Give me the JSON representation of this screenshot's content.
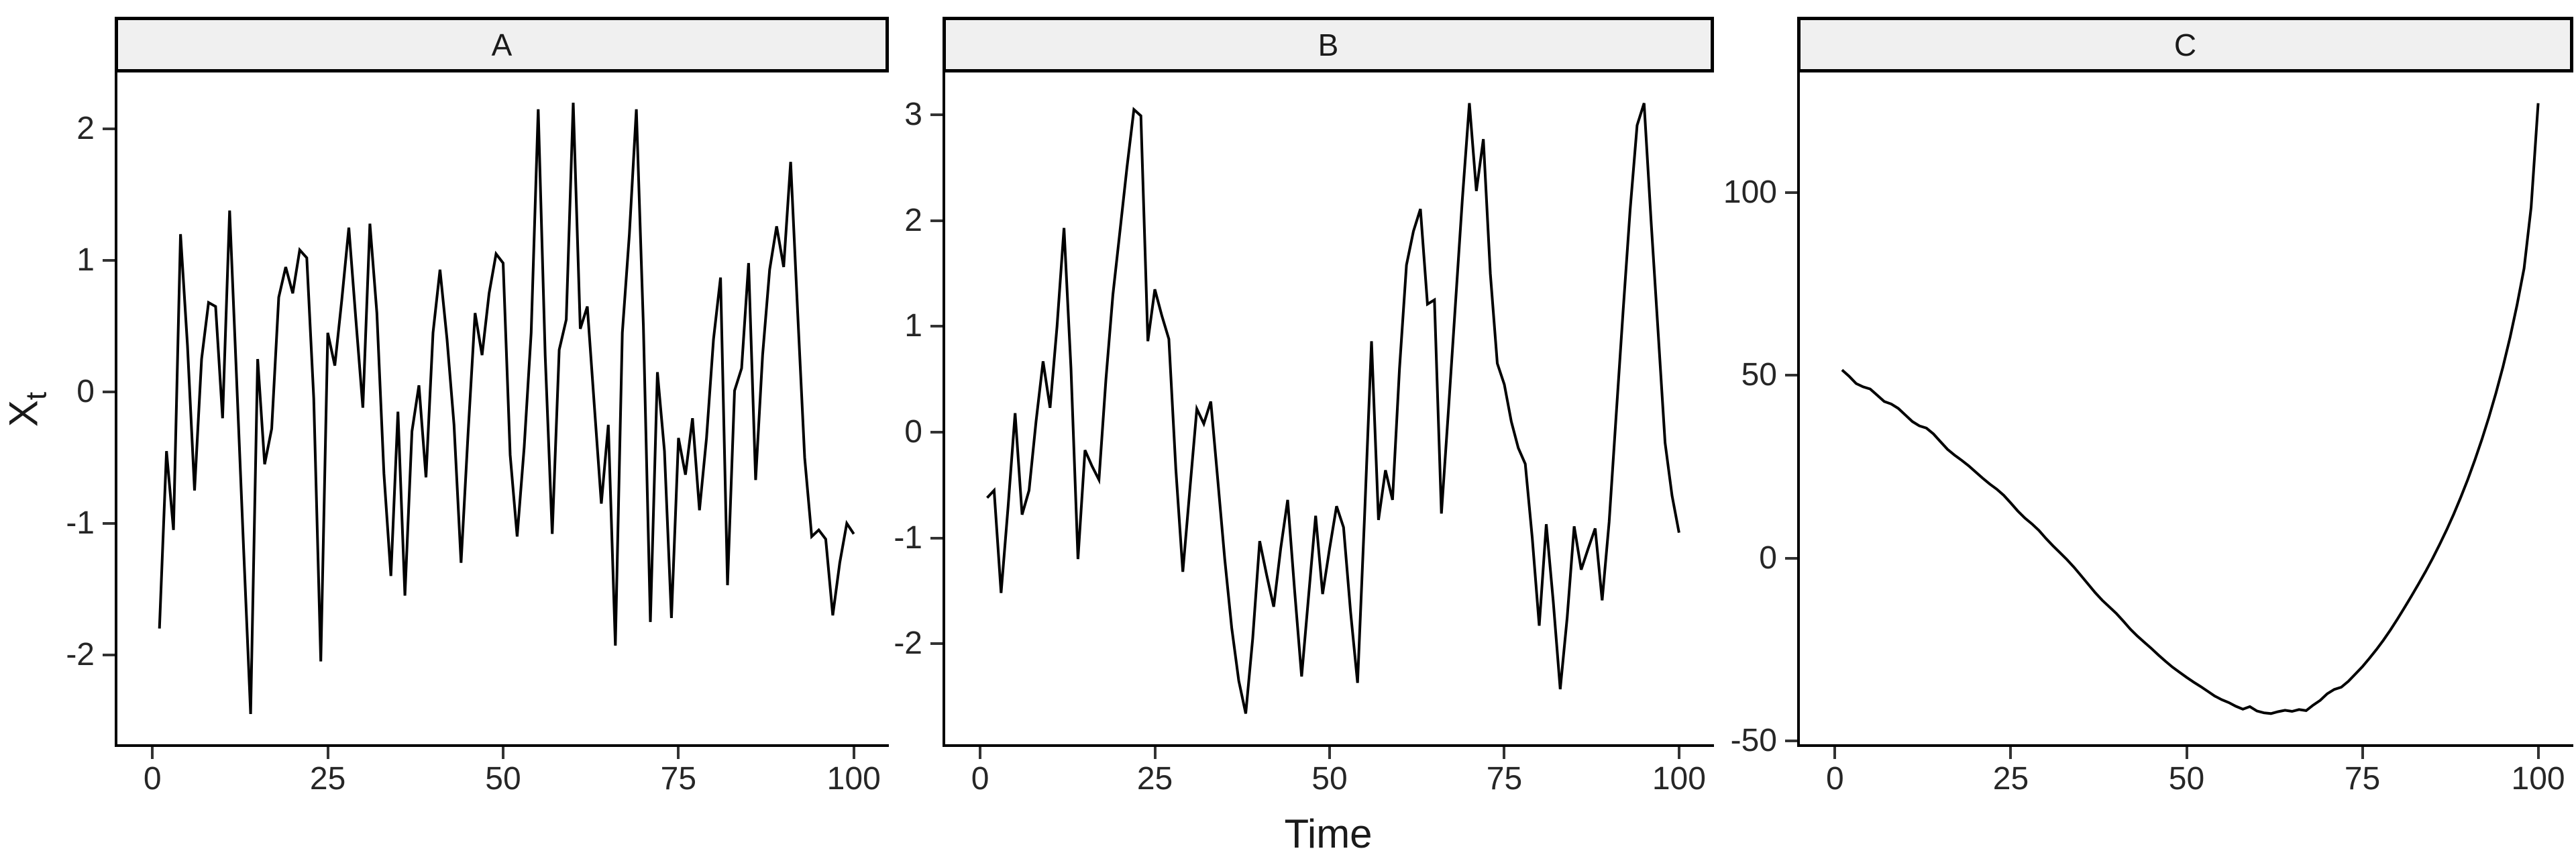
{
  "figure": {
    "background": "#FFFFFF",
    "axis_line_color": "#000000",
    "tick_color": "#333333",
    "tick_label_color": "#262626",
    "series_line_color": "#000000",
    "strip_fill": "#F0F0F0",
    "strip_border_color": "#000000"
  },
  "chart_data": {
    "type": "line",
    "title": "",
    "xlabel": "Time",
    "ylabel_base": "X",
    "ylabel_sub": "t",
    "x_range": [
      1,
      100
    ],
    "x_step": 1,
    "xticks": [
      0,
      25,
      50,
      75,
      100
    ],
    "xlim": [
      -5,
      105
    ],
    "legend": "none",
    "grid": "off",
    "facets": [
      {
        "label": "A",
        "yticks": [
          -2,
          -1,
          0,
          1,
          2
        ],
        "ylim": [
          -2.68,
          2.43
        ],
        "values": [
          -1.8,
          -0.45,
          -1.05,
          1.2,
          0.35,
          -0.75,
          0.25,
          0.68,
          0.65,
          -0.2,
          1.38,
          0.1,
          -1.2,
          -2.45,
          0.25,
          -0.55,
          -0.28,
          0.72,
          0.95,
          0.75,
          1.08,
          1.02,
          -0.05,
          -2.05,
          0.45,
          0.2,
          0.7,
          1.25,
          0.55,
          -0.12,
          1.28,
          0.6,
          -0.62,
          -1.4,
          -0.15,
          -1.55,
          -0.3,
          0.05,
          -0.65,
          0.45,
          0.93,
          0.4,
          -0.25,
          -1.3,
          -0.32,
          0.6,
          0.28,
          0.75,
          1.05,
          0.98,
          -0.48,
          -1.1,
          -0.42,
          0.45,
          2.15,
          0.28,
          -1.08,
          0.32,
          0.55,
          2.2,
          0.48,
          0.65,
          -0.1,
          -0.85,
          -0.25,
          -1.93,
          0.45,
          1.2,
          2.15,
          0.5,
          -1.75,
          0.15,
          -0.45,
          -1.72,
          -0.35,
          -0.63,
          -0.2,
          -0.9,
          -0.35,
          0.4,
          0.87,
          -1.47,
          0.01,
          0.18,
          0.98,
          -0.67,
          0.28,
          0.93,
          1.26,
          0.95,
          1.75,
          0.6,
          -0.5,
          -1.1,
          -1.05,
          -1.12,
          -1.7,
          -1.3,
          -1.0,
          -1.08
        ]
      },
      {
        "label": "B",
        "yticks": [
          -2,
          -1,
          0,
          1,
          2,
          3
        ],
        "ylim": [
          -2.95,
          3.4
        ],
        "values": [
          -0.62,
          -0.55,
          -1.52,
          -0.7,
          0.18,
          -0.78,
          -0.55,
          0.1,
          0.67,
          0.23,
          1.0,
          1.93,
          0.6,
          -1.2,
          -0.17,
          -0.32,
          -0.45,
          0.5,
          1.3,
          1.9,
          2.5,
          3.05,
          2.99,
          0.86,
          1.35,
          1.1,
          0.88,
          -0.35,
          -1.32,
          -0.55,
          0.22,
          0.08,
          0.29,
          -0.45,
          -1.2,
          -1.85,
          -2.35,
          -2.66,
          -1.95,
          -1.03,
          -1.35,
          -1.65,
          -1.1,
          -0.64,
          -1.5,
          -2.31,
          -1.55,
          -0.79,
          -1.53,
          -1.1,
          -0.7,
          -0.9,
          -1.7,
          -2.37,
          -0.8,
          0.86,
          -0.83,
          -0.36,
          -0.64,
          0.6,
          1.58,
          1.9,
          2.11,
          1.21,
          1.25,
          -0.77,
          0.2,
          1.2,
          2.2,
          3.11,
          2.28,
          2.77,
          1.5,
          0.65,
          0.45,
          0.1,
          -0.15,
          -0.3,
          -1.0,
          -1.83,
          -0.87,
          -1.6,
          -2.43,
          -1.75,
          -0.89,
          -1.3,
          -1.1,
          -0.91,
          -1.59,
          -0.85,
          0.15,
          1.15,
          2.1,
          2.9,
          3.11,
          2.0,
          0.95,
          -0.1,
          -0.6,
          -0.95
        ]
      },
      {
        "label": "C",
        "yticks": [
          -50,
          0,
          50,
          100
        ],
        "ylim": [
          -50.9,
          132.9
        ],
        "values": [
          51.5,
          49.8,
          47.8,
          46.9,
          46.3,
          44.6,
          42.9,
          42.2,
          41.0,
          39.2,
          37.4,
          36.2,
          35.6,
          34.0,
          31.9,
          29.8,
          28.2,
          26.8,
          25.3,
          23.6,
          21.9,
          20.3,
          18.9,
          17.2,
          15.1,
          12.9,
          11.0,
          9.4,
          7.6,
          5.4,
          3.4,
          1.5,
          -0.4,
          -2.5,
          -4.8,
          -7.1,
          -9.4,
          -11.5,
          -13.3,
          -15.1,
          -17.2,
          -19.4,
          -21.3,
          -23.0,
          -24.7,
          -26.5,
          -28.2,
          -29.8,
          -31.2,
          -32.6,
          -33.9,
          -35.1,
          -36.4,
          -37.7,
          -38.7,
          -39.5,
          -40.5,
          -41.3,
          -40.6,
          -41.8,
          -42.3,
          -42.5,
          -42.0,
          -41.6,
          -41.9,
          -41.4,
          -41.7,
          -40.2,
          -38.9,
          -37.1,
          -35.9,
          -35.3,
          -33.7,
          -31.7,
          -29.7,
          -27.4,
          -25.0,
          -22.4,
          -19.6,
          -16.6,
          -13.5,
          -10.3,
          -7.0,
          -3.6,
          0.0,
          3.8,
          7.8,
          12.1,
          16.7,
          21.6,
          26.9,
          32.5,
          38.6,
          45.2,
          52.4,
          60.4,
          69.3,
          79.3,
          96.0,
          124.5
        ]
      }
    ]
  }
}
